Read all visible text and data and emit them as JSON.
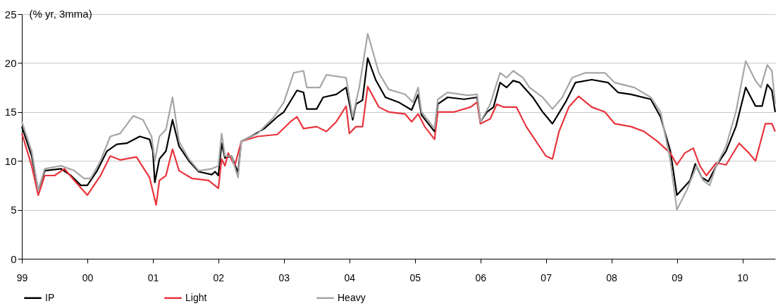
{
  "chart_data": {
    "type": "line",
    "ylabel": "(% yr, 3mma)",
    "xlim": [
      1999,
      2010.5
    ],
    "xticks": [
      {
        "value": 1999,
        "label": "99"
      },
      {
        "value": 2000,
        "label": "00"
      },
      {
        "value": 2001,
        "label": "01"
      },
      {
        "value": 2002,
        "label": "02"
      },
      {
        "value": 2003,
        "label": "03"
      },
      {
        "value": 2004,
        "label": "04"
      },
      {
        "value": 2005,
        "label": "05"
      },
      {
        "value": 2006,
        "label": "06"
      },
      {
        "value": 2007,
        "label": "07"
      },
      {
        "value": 2008,
        "label": "08"
      },
      {
        "value": 2009,
        "label": "09"
      },
      {
        "value": 2010,
        "label": "10"
      }
    ],
    "ylim": [
      0,
      25
    ],
    "yticks": [
      0,
      5,
      10,
      15,
      20,
      25
    ],
    "grid": "y",
    "legend": "bottom",
    "line_style": "solid",
    "series": [
      {
        "name": "IP",
        "color": "#000000",
        "x": [
          1999.0,
          1999.15,
          1999.25,
          1999.35,
          1999.6,
          1999.75,
          1999.9,
          2000.0,
          2000.15,
          2000.3,
          2000.45,
          2000.6,
          2000.8,
          2000.95,
          2001.0,
          2001.03,
          2001.1,
          2001.2,
          2001.3,
          2001.4,
          2001.55,
          2001.7,
          2001.9,
          2001.95,
          2002.0,
          2002.05,
          2002.1,
          2002.2,
          2002.3,
          2002.35,
          2002.5,
          2002.7,
          2002.9,
          2003.0,
          2003.2,
          2003.3,
          2003.35,
          2003.5,
          2003.6,
          2003.8,
          2003.95,
          2004.05,
          2004.1,
          2004.2,
          2004.28,
          2004.4,
          2004.55,
          2004.75,
          2004.95,
          2005.05,
          2005.1,
          2005.3,
          2005.35,
          2005.5,
          2005.75,
          2005.95,
          2006.0,
          2006.1,
          2006.2,
          2006.3,
          2006.4,
          2006.5,
          2006.6,
          2006.8,
          2006.95,
          2007.1,
          2007.3,
          2007.45,
          2007.7,
          2007.95,
          2008.1,
          2008.3,
          2008.6,
          2008.75,
          2008.9,
          2009.0,
          2009.2,
          2009.28,
          2009.38,
          2009.48,
          2009.6,
          2009.75,
          2009.9,
          2010.05,
          2010.2,
          2010.3,
          2010.38,
          2010.45,
          2010.5
        ],
        "values": [
          13.5,
          10.5,
          7,
          9,
          9.2,
          8.5,
          7.5,
          7.5,
          9,
          11,
          11.7,
          11.8,
          12.5,
          12.2,
          11,
          7.8,
          10.2,
          11,
          14.2,
          11.5,
          10,
          8.9,
          8.6,
          8.9,
          8.5,
          11.8,
          10.3,
          10.5,
          8.8,
          12,
          12.5,
          13.3,
          14.5,
          15,
          17.2,
          17,
          15.3,
          15.3,
          16.5,
          16.8,
          17.5,
          14.2,
          15.8,
          16.2,
          20.5,
          18.3,
          16.5,
          16,
          15.2,
          16.8,
          14.7,
          13,
          15.8,
          16.5,
          16.3,
          16.5,
          14,
          15,
          15.5,
          18,
          17.5,
          18.2,
          18,
          16.5,
          15,
          13.8,
          16,
          18,
          18.3,
          18,
          17,
          16.8,
          16.3,
          14.5,
          11,
          6.5,
          8,
          9.7,
          8.3,
          7.9,
          9.5,
          11,
          13.5,
          17.5,
          15.6,
          15.6,
          17.8,
          17.2,
          15
        ]
      },
      {
        "name": "Light",
        "color": "#e8343c",
        "x": [
          1999.0,
          1999.15,
          1999.25,
          1999.35,
          1999.5,
          1999.65,
          1999.8,
          2000.0,
          2000.2,
          2000.35,
          2000.5,
          2000.75,
          2000.95,
          2001.05,
          2001.1,
          2001.2,
          2001.3,
          2001.4,
          2001.6,
          2001.85,
          2002.0,
          2002.05,
          2002.1,
          2002.15,
          2002.25,
          2002.35,
          2002.6,
          2002.9,
          2003.1,
          2003.2,
          2003.3,
          2003.5,
          2003.65,
          2003.8,
          2003.95,
          2004.0,
          2004.1,
          2004.2,
          2004.28,
          2004.45,
          2004.6,
          2004.85,
          2004.95,
          2005.05,
          2005.15,
          2005.3,
          2005.35,
          2005.6,
          2005.85,
          2005.95,
          2006.0,
          2006.15,
          2006.25,
          2006.35,
          2006.55,
          2006.7,
          2006.85,
          2007.0,
          2007.1,
          2007.2,
          2007.35,
          2007.5,
          2007.7,
          2007.9,
          2008.05,
          2008.3,
          2008.5,
          2008.7,
          2008.9,
          2009.0,
          2009.12,
          2009.25,
          2009.35,
          2009.45,
          2009.6,
          2009.75,
          2009.95,
          2010.1,
          2010.2,
          2010.35,
          2010.45,
          2010.5
        ],
        "values": [
          12.8,
          9.5,
          6.5,
          8.5,
          8.5,
          9.2,
          8,
          6.5,
          8.5,
          10.5,
          10.1,
          10.4,
          8.3,
          5.5,
          8,
          8.5,
          11.2,
          9,
          8.2,
          8,
          7.2,
          10.2,
          9.5,
          10.8,
          9.5,
          12,
          12.5,
          12.7,
          14,
          14.5,
          13.3,
          13.5,
          13,
          14,
          15.6,
          12.8,
          13.5,
          13.5,
          17.6,
          15.5,
          15,
          14.8,
          14,
          14.8,
          13.5,
          12.2,
          15,
          15,
          15.5,
          16,
          13.8,
          14.3,
          15.8,
          15.5,
          15.5,
          13.5,
          12,
          10.5,
          10.2,
          13,
          15.5,
          16.6,
          15.5,
          15,
          13.8,
          13.5,
          13,
          12,
          10.8,
          9.6,
          10.8,
          11.3,
          9.5,
          8.5,
          9.8,
          9.6,
          11.8,
          10.8,
          10,
          13.8,
          13.8,
          13
        ]
      },
      {
        "name": "Heavy",
        "color": "#a6a6a6",
        "x": [
          1999.0,
          1999.15,
          1999.25,
          1999.35,
          1999.6,
          1999.8,
          1999.95,
          2000.05,
          2000.2,
          2000.35,
          2000.5,
          2000.7,
          2000.85,
          2000.98,
          2001.03,
          2001.1,
          2001.2,
          2001.3,
          2001.4,
          2001.55,
          2001.7,
          2001.9,
          2002.0,
          2002.05,
          2002.1,
          2002.2,
          2002.3,
          2002.35,
          2002.6,
          2002.85,
          2003.0,
          2003.15,
          2003.3,
          2003.35,
          2003.55,
          2003.65,
          2003.95,
          2004.05,
          2004.15,
          2004.28,
          2004.45,
          2004.6,
          2004.85,
          2004.97,
          2005.05,
          2005.1,
          2005.3,
          2005.35,
          2005.5,
          2005.8,
          2005.95,
          2006.0,
          2006.15,
          2006.3,
          2006.4,
          2006.5,
          2006.65,
          2006.75,
          2006.95,
          2007.1,
          2007.25,
          2007.4,
          2007.6,
          2007.9,
          2008.05,
          2008.35,
          2008.6,
          2008.75,
          2008.9,
          2009.0,
          2009.15,
          2009.3,
          2009.4,
          2009.5,
          2009.6,
          2009.75,
          2009.9,
          2010.05,
          2010.2,
          2010.28,
          2010.38,
          2010.45,
          2010.5
        ],
        "values": [
          14,
          11,
          7,
          9.2,
          9.5,
          9,
          8.2,
          8.2,
          10,
          12.5,
          12.8,
          14.6,
          14.2,
          12.5,
          10,
          12.5,
          13.2,
          16.5,
          12,
          10.2,
          9,
          9.2,
          9.5,
          12.8,
          10.5,
          10.5,
          8.3,
          12,
          12.8,
          14.5,
          16,
          19,
          19.2,
          17.5,
          17.5,
          18.8,
          18.5,
          14.5,
          17.5,
          23,
          19,
          17.3,
          16.8,
          16,
          17.5,
          15,
          13.3,
          16.3,
          17,
          16.7,
          16.8,
          14,
          15.8,
          19,
          18.5,
          19.2,
          18.5,
          17.5,
          16.5,
          15.3,
          16.5,
          18.5,
          19,
          19,
          18,
          17.5,
          16.5,
          15,
          10,
          5,
          7,
          9.5,
          8,
          7.5,
          9.5,
          11.5,
          15,
          20.2,
          18.2,
          17.5,
          19.8,
          19.2,
          15.8
        ]
      }
    ]
  }
}
